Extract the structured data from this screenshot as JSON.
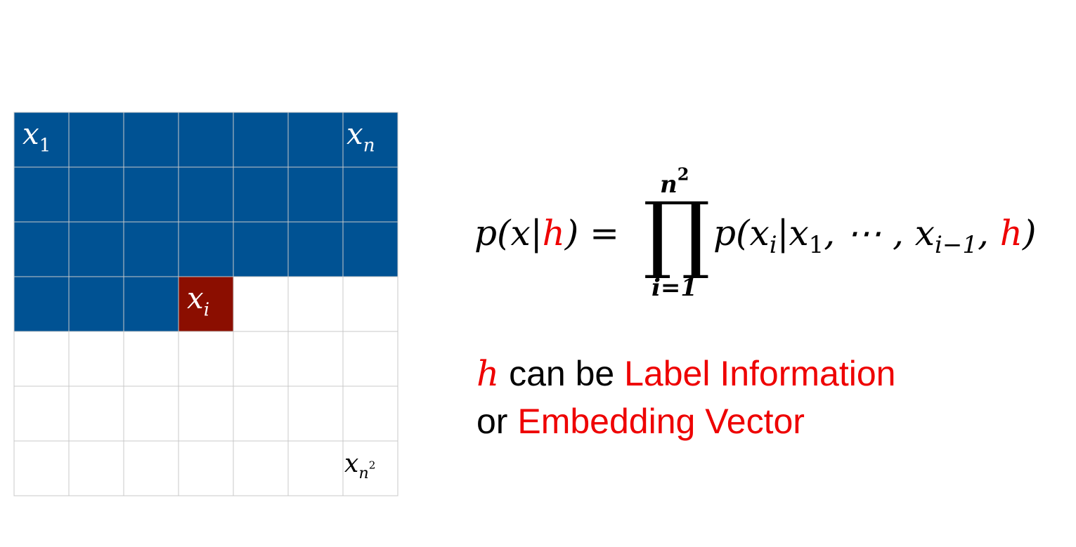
{
  "colors": {
    "filled": "#005293",
    "current": "#8b0e00",
    "empty": "#ffffff",
    "gridline": "#c8c8c8",
    "highlight": "#ee0000"
  },
  "grid": {
    "rows": 7,
    "cols": 7,
    "current_cell": {
      "row": 3,
      "col": 3
    },
    "labels": {
      "top_left": {
        "base": "x",
        "sub": "1"
      },
      "top_right": {
        "base": "x",
        "sub": "n"
      },
      "current": {
        "base": "x",
        "sub": "i"
      },
      "bottom_right": {
        "base": "x",
        "sub": "n",
        "sup": "2"
      }
    }
  },
  "formula": {
    "lhs_p": "p(x|",
    "lhs_h": "h",
    "lhs_close": ") =",
    "prod_symbol": "∏",
    "upper_limit_base": "n",
    "upper_limit_exp": "2",
    "lower_limit": "i=1",
    "rhs_p": "p(x",
    "rhs_sub_i": "i",
    "rhs_bar_x": "|x",
    "rhs_sub_1": "1",
    "rhs_dots": ", ⋯ , x",
    "rhs_sub_i1": "i−1",
    "rhs_comma": ", ",
    "rhs_h": "h",
    "rhs_close": ")"
  },
  "caption": {
    "h": "h",
    "can_be": " can be ",
    "label_info": "Label Information",
    "or": "or ",
    "embedding": "Embedding Vector"
  }
}
